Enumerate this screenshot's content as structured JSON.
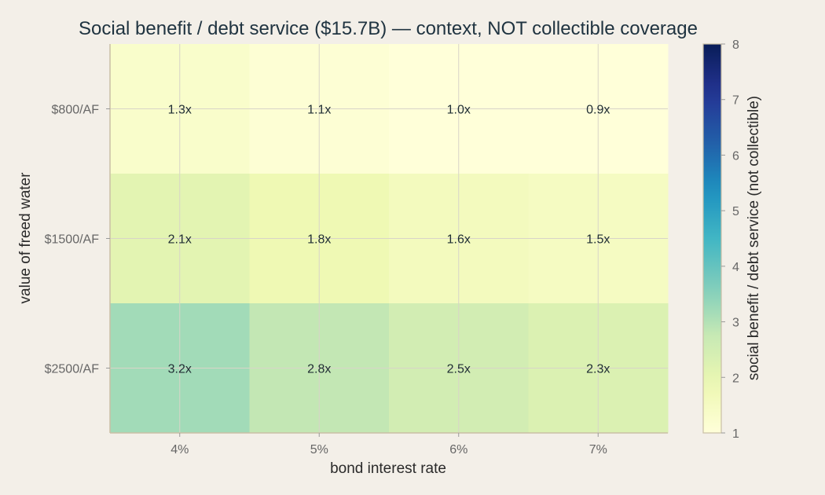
{
  "chart_data": {
    "type": "heatmap",
    "title": "Social benefit / debt service ($15.7B) — context, NOT collectible coverage",
    "xlabel": "bond interest rate",
    "ylabel": "value of freed water",
    "x_categories": [
      "4%",
      "5%",
      "6%",
      "7%"
    ],
    "y_categories": [
      "$800/AF",
      "$1500/AF",
      "$2500/AF"
    ],
    "values": [
      [
        1.3,
        1.1,
        1.0,
        0.9
      ],
      [
        2.1,
        1.8,
        1.6,
        1.5
      ],
      [
        3.2,
        2.8,
        2.5,
        2.3
      ]
    ],
    "cell_labels": [
      [
        "1.3x",
        "1.1x",
        "1.0x",
        "0.9x"
      ],
      [
        "2.1x",
        "1.8x",
        "1.6x",
        "1.5x"
      ],
      [
        "3.2x",
        "2.8x",
        "2.5x",
        "2.3x"
      ]
    ],
    "colorbar": {
      "label": "social benefit / debt service (not collectible)",
      "range": [
        1,
        8
      ],
      "ticks": [
        "1",
        "2",
        "3",
        "4",
        "5",
        "6",
        "7",
        "8"
      ],
      "colormap": "YlGnBu"
    },
    "grid": true
  },
  "colors": {
    "background": "#f3efe8",
    "grid": "#d8d4c8",
    "axis": "#c9bfa6"
  }
}
